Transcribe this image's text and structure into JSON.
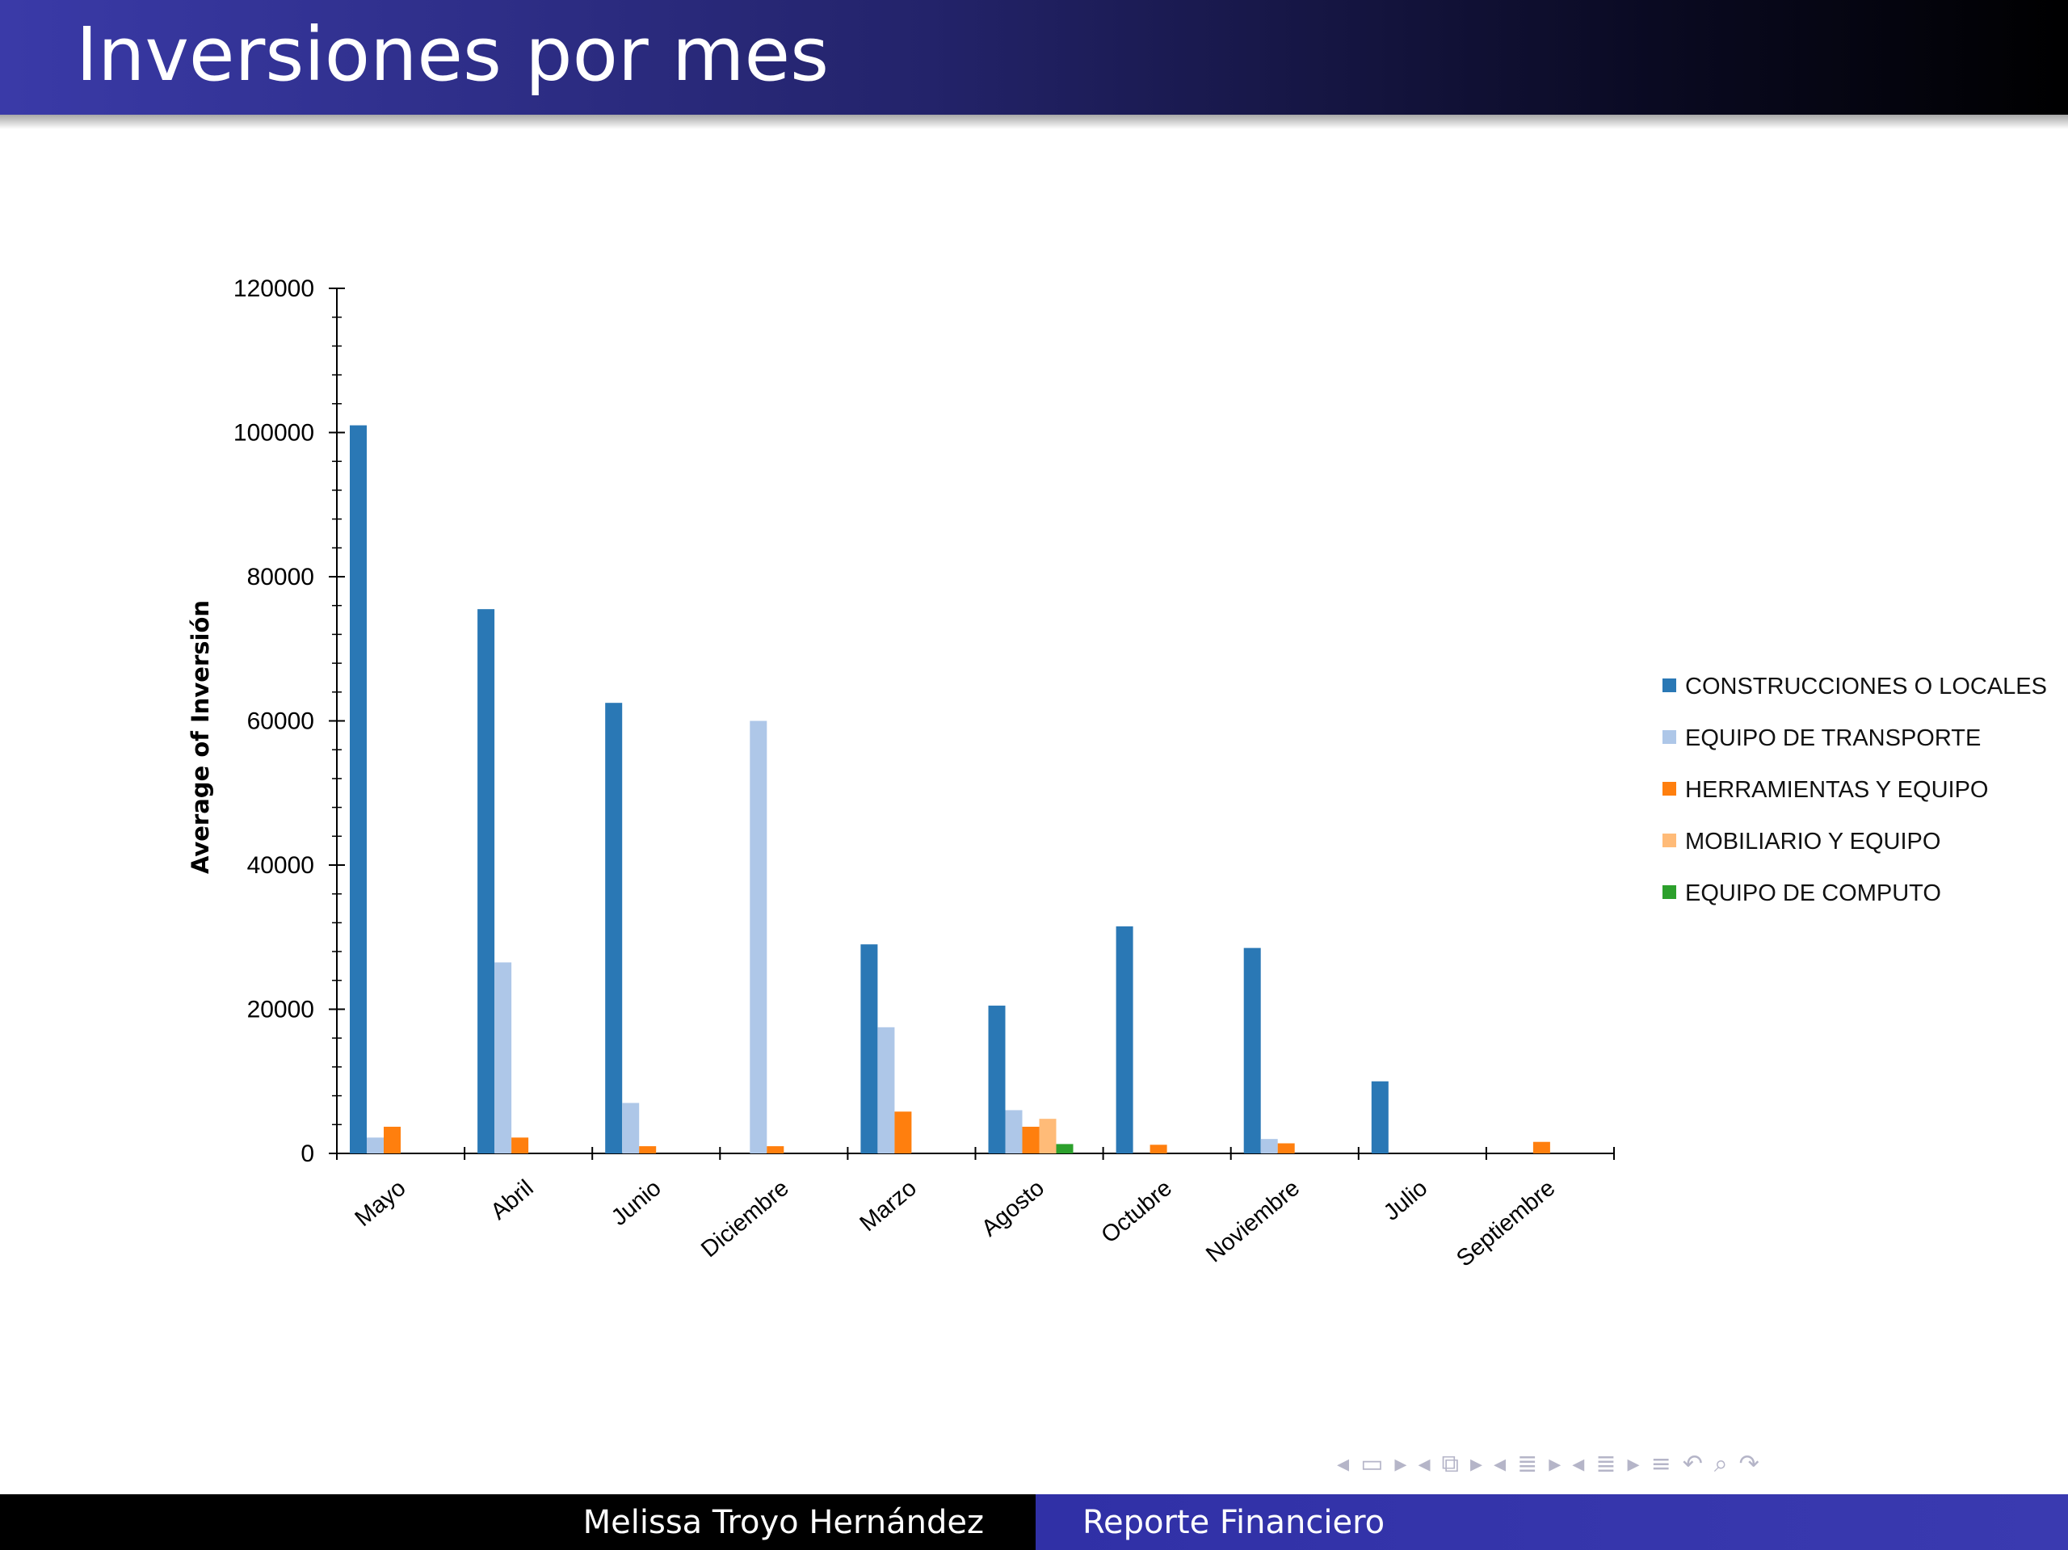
{
  "slide": {
    "title": "Inversiones por mes",
    "footer_author": "Melissa Troyo Hernández",
    "footer_title": "Reporte Financiero"
  },
  "nav_icons": [
    "arrow-left-icon",
    "frame-icon",
    "arrow-right-icon",
    "arrow-left-icon",
    "subsection-icon",
    "arrow-right-icon",
    "arrow-left-icon",
    "section-icon",
    "arrow-right-icon",
    "arrow-left-icon",
    "list-icon",
    "arrow-right-icon",
    "align-icon",
    "undo-icon",
    "search-icon",
    "redo-icon"
  ],
  "chart_data": {
    "type": "bar",
    "ylabel": "Average of Inversión",
    "xlabel": "",
    "ylim": [
      0,
      120000
    ],
    "yticks": [
      0,
      20000,
      40000,
      60000,
      80000,
      100000,
      120000
    ],
    "legend_position": "right",
    "categories": [
      "Mayo",
      "Abril",
      "Junio",
      "Diciembre",
      "Marzo",
      "Agosto",
      "Octubre",
      "Noviembre",
      "Julio",
      "Septiembre"
    ],
    "series": [
      {
        "name": "CONSTRUCCIONES O LOCALES",
        "color": "#2a78b5",
        "values": [
          101000,
          75500,
          62500,
          0,
          29000,
          20500,
          31500,
          28500,
          10000,
          0
        ]
      },
      {
        "name": "EQUIPO DE TRANSPORTE",
        "color": "#aec7e8",
        "values": [
          2200,
          26500,
          7000,
          60000,
          17500,
          6000,
          0,
          2000,
          0,
          0
        ]
      },
      {
        "name": "HERRAMIENTAS Y EQUIPO",
        "color": "#ff7f0e",
        "values": [
          3700,
          2200,
          1000,
          1000,
          5800,
          3700,
          1200,
          1400,
          0,
          1600
        ]
      },
      {
        "name": "MOBILIARIO Y EQUIPO",
        "color": "#ffbb78",
        "values": [
          0,
          0,
          0,
          0,
          0,
          4800,
          0,
          0,
          0,
          0
        ]
      },
      {
        "name": "EQUIPO DE COMPUTO",
        "color": "#2ca02c",
        "values": [
          0,
          0,
          0,
          0,
          0,
          1300,
          0,
          0,
          0,
          0
        ]
      }
    ]
  }
}
